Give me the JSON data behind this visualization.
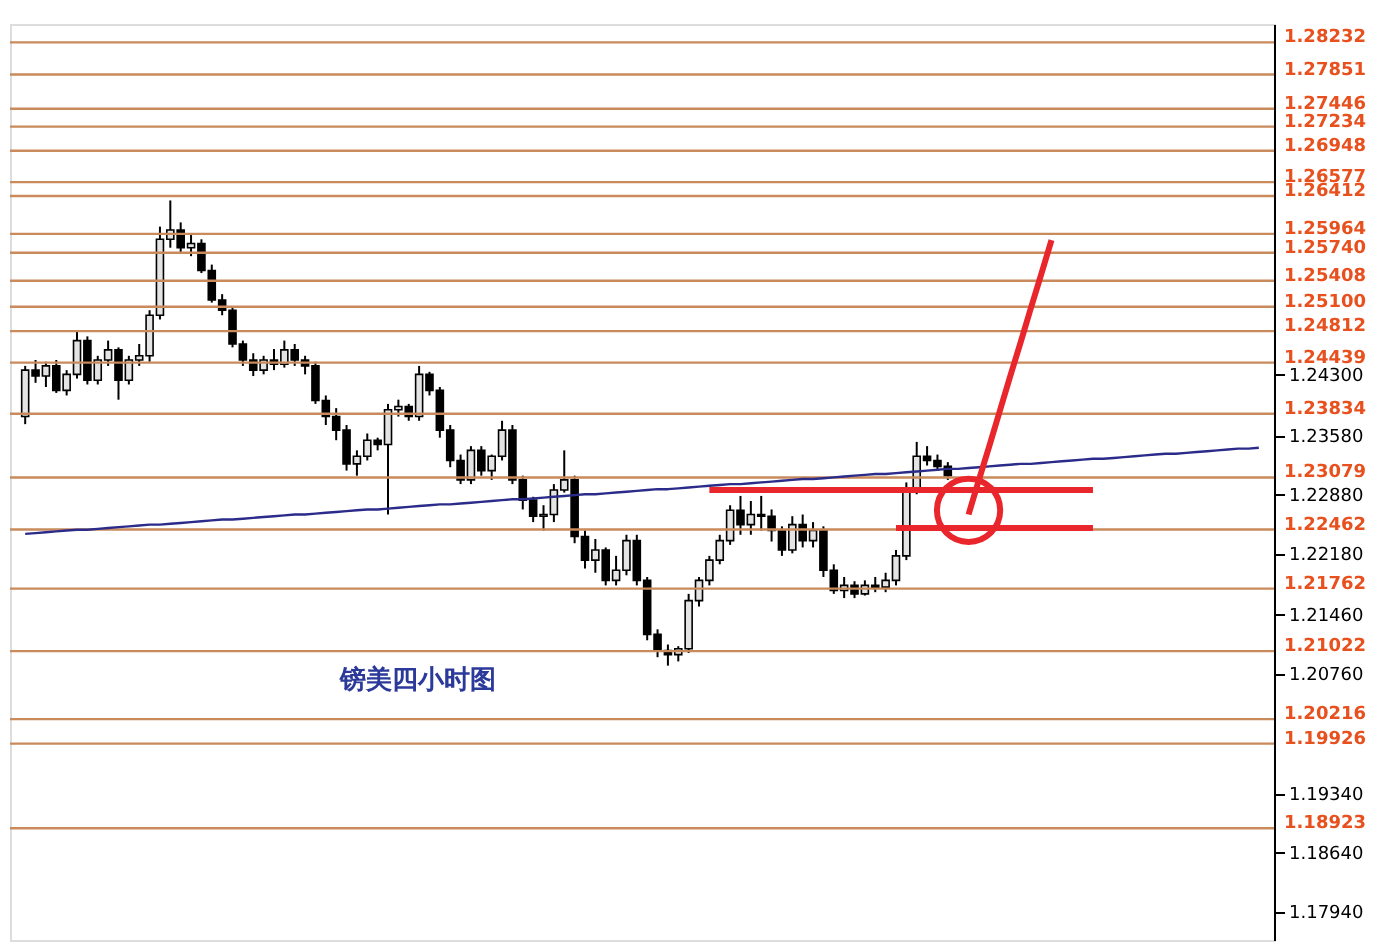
{
  "chart_data": {
    "type": "candlestick",
    "categories": [
      null,
      null,
      null,
      null,
      null,
      null,
      null,
      null,
      null,
      null,
      null,
      null,
      null,
      null,
      null,
      null,
      null,
      null,
      null,
      null,
      null,
      null,
      null,
      null,
      null,
      null,
      null,
      null,
      null,
      null,
      null,
      null,
      null,
      null,
      null,
      null,
      null,
      null,
      null,
      null,
      null,
      null,
      null,
      null,
      null,
      null,
      null,
      null,
      null,
      null,
      null,
      null,
      null,
      null,
      null,
      null,
      null,
      null,
      null,
      null,
      null,
      null,
      null,
      null,
      null,
      null,
      null,
      null,
      null,
      null,
      null,
      null,
      null,
      null,
      null,
      null,
      null,
      null,
      null,
      null,
      null,
      null,
      null,
      null,
      null,
      null,
      null,
      null,
      null,
      null,
      null,
      null,
      null,
      null,
      null,
      null,
      null,
      null,
      null,
      null,
      null,
      null,
      null,
      null,
      null,
      null,
      null,
      null,
      null,
      null,
      null,
      null,
      null,
      null,
      null,
      null,
      null,
      null,
      null,
      null
    ],
    "ohlc": [
      [
        1.238,
        1.244,
        1.2371,
        1.2435
      ],
      [
        1.2435,
        1.2447,
        1.242,
        1.2428
      ],
      [
        1.2428,
        1.2445,
        1.2415,
        1.244
      ],
      [
        1.244,
        1.2447,
        1.2408,
        1.2411
      ],
      [
        1.2411,
        1.2435,
        1.2405,
        1.243
      ],
      [
        1.243,
        1.2482,
        1.2425,
        1.247
      ],
      [
        1.247,
        1.2475,
        1.2418,
        1.2423
      ],
      [
        1.2423,
        1.2452,
        1.2418,
        1.2447
      ],
      [
        1.2447,
        1.247,
        1.244,
        1.2459
      ],
      [
        1.2459,
        1.2462,
        1.24,
        1.2423
      ],
      [
        1.2423,
        1.2452,
        1.2418,
        1.2447
      ],
      [
        1.2447,
        1.2466,
        1.244,
        1.2452
      ],
      [
        1.2452,
        1.2506,
        1.2445,
        1.25
      ],
      [
        1.25,
        1.2605,
        1.2495,
        1.259
      ],
      [
        1.259,
        1.2636,
        1.258,
        1.2601
      ],
      [
        1.2601,
        1.261,
        1.2575,
        1.258
      ],
      [
        1.258,
        1.2595,
        1.257,
        1.2585
      ],
      [
        1.2585,
        1.259,
        1.255,
        1.2553
      ],
      [
        1.2553,
        1.256,
        1.2515,
        1.2518
      ],
      [
        1.2518,
        1.2525,
        1.25,
        1.2506
      ],
      [
        1.2506,
        1.251,
        1.2462,
        1.2466
      ],
      [
        1.2466,
        1.247,
        1.244,
        1.2447
      ],
      [
        1.2447,
        1.2455,
        1.2428,
        1.2435
      ],
      [
        1.2435,
        1.2452,
        1.243,
        1.2447
      ],
      [
        1.2447,
        1.246,
        1.2435,
        1.2442
      ],
      [
        1.2442,
        1.247,
        1.2438,
        1.2459
      ],
      [
        1.2459,
        1.2466,
        1.244,
        1.2447
      ],
      [
        1.2447,
        1.2452,
        1.243,
        1.244
      ],
      [
        1.244,
        1.2445,
        1.2395,
        1.2399
      ],
      [
        1.2399,
        1.2405,
        1.237,
        1.238
      ],
      [
        1.238,
        1.239,
        1.2352,
        1.2364
      ],
      [
        1.2364,
        1.237,
        1.2316,
        1.2324
      ],
      [
        1.2324,
        1.234,
        1.231,
        1.2333
      ],
      [
        1.2333,
        1.236,
        1.2328,
        1.2352
      ],
      [
        1.2352,
        1.2355,
        1.234,
        1.2347
      ],
      [
        1.2347,
        1.2395,
        1.2264,
        1.2388
      ],
      [
        1.2388,
        1.24,
        1.238,
        1.2392
      ],
      [
        1.2392,
        1.2395,
        1.2375,
        1.238
      ],
      [
        1.238,
        1.244,
        1.2375,
        1.243
      ],
      [
        1.243,
        1.2433,
        1.2405,
        1.2411
      ],
      [
        1.2411,
        1.2415,
        1.2355,
        1.2364
      ],
      [
        1.2364,
        1.237,
        1.232,
        1.2328
      ],
      [
        1.2328,
        1.2335,
        1.23,
        1.2305
      ],
      [
        1.2305,
        1.2345,
        1.23,
        1.234
      ],
      [
        1.234,
        1.2345,
        1.231,
        1.2316
      ],
      [
        1.2316,
        1.2335,
        1.2305,
        1.2333
      ],
      [
        1.2333,
        1.2375,
        1.2328,
        1.2364
      ],
      [
        1.2364,
        1.237,
        1.23,
        1.2305
      ],
      [
        1.2305,
        1.231,
        1.227,
        1.2281
      ],
      [
        1.2281,
        1.2285,
        1.2255,
        1.2262
      ],
      [
        1.2262,
        1.2275,
        1.2245,
        1.2264
      ],
      [
        1.2264,
        1.23,
        1.2255,
        1.2293
      ],
      [
        1.2293,
        1.234,
        1.229,
        1.2305
      ],
      [
        1.2305,
        1.231,
        1.223,
        1.2238
      ],
      [
        1.2238,
        1.2245,
        1.22,
        1.221
      ],
      [
        1.221,
        1.2235,
        1.2195,
        1.2222
      ],
      [
        1.2222,
        1.2225,
        1.218,
        1.2186
      ],
      [
        1.2186,
        1.2215,
        1.218,
        1.2198
      ],
      [
        1.2198,
        1.224,
        1.2192,
        1.2233
      ],
      [
        1.2233,
        1.224,
        1.218,
        1.2186
      ],
      [
        1.2186,
        1.219,
        1.2115,
        1.2122
      ],
      [
        1.2122,
        1.2128,
        1.2095,
        1.2103
      ],
      [
        1.2103,
        1.211,
        1.2085,
        1.2098
      ],
      [
        1.2098,
        1.2108,
        1.209,
        1.2105
      ],
      [
        1.2105,
        1.217,
        1.21,
        1.2162
      ],
      [
        1.2162,
        1.219,
        1.2155,
        1.2186
      ],
      [
        1.2186,
        1.2215,
        1.218,
        1.221
      ],
      [
        1.221,
        1.224,
        1.2205,
        1.2233
      ],
      [
        1.2233,
        1.2275,
        1.2228,
        1.2269
      ],
      [
        1.2269,
        1.2286,
        1.224,
        1.2252
      ],
      [
        1.2252,
        1.228,
        1.224,
        1.2264
      ],
      [
        1.2264,
        1.2286,
        1.2245,
        1.2262
      ],
      [
        1.2262,
        1.227,
        1.2232,
        1.2245
      ],
      [
        1.2245,
        1.225,
        1.2215,
        1.2222
      ],
      [
        1.2222,
        1.2262,
        1.2218,
        1.2252
      ],
      [
        1.2252,
        1.2264,
        1.2225,
        1.2233
      ],
      [
        1.2233,
        1.2255,
        1.2225,
        1.2245
      ],
      [
        1.2245,
        1.225,
        1.219,
        1.2198
      ],
      [
        1.2198,
        1.2205,
        1.217,
        1.2174
      ],
      [
        1.2174,
        1.219,
        1.2165,
        1.218
      ],
      [
        1.218,
        1.2185,
        1.2165,
        1.217
      ],
      [
        1.217,
        1.2186,
        1.2168,
        1.218
      ],
      [
        1.218,
        1.219,
        1.2172,
        1.2178
      ],
      [
        1.2178,
        1.2195,
        1.2172,
        1.2186
      ],
      [
        1.2186,
        1.2222,
        1.218,
        1.2215
      ],
      [
        1.2215,
        1.2302,
        1.221,
        1.2293
      ],
      [
        1.2293,
        1.235,
        1.2288,
        1.2333
      ],
      [
        1.2333,
        1.2345,
        1.2322,
        1.2328
      ],
      [
        1.2328,
        1.2335,
        1.2316,
        1.2321
      ],
      [
        1.2321,
        1.2326,
        1.2305,
        1.231
      ],
      null,
      null,
      null,
      null,
      null,
      null,
      null,
      null,
      null,
      null,
      null,
      null,
      null,
      null,
      null,
      null,
      null,
      null,
      null,
      null,
      null,
      null,
      null,
      null,
      null,
      null,
      null,
      null,
      null,
      null
    ],
    "ylim": [
      1.176,
      1.2845
    ],
    "yticks": [
      {
        "value": 1.243,
        "label": "1.24300"
      },
      {
        "value": 1.2358,
        "label": "1.23580"
      },
      {
        "value": 1.2288,
        "label": "1.22880"
      },
      {
        "value": 1.2218,
        "label": "1.22180"
      },
      {
        "value": 1.2146,
        "label": "1.21460"
      },
      {
        "value": 1.2076,
        "label": "1.20760"
      },
      {
        "value": 1.1934,
        "label": "1.19340"
      },
      {
        "value": 1.1864,
        "label": "1.18640"
      },
      {
        "value": 1.1794,
        "label": "1.17940"
      }
    ],
    "tick_labels": "y",
    "grid": false,
    "ref_lines": [
      {
        "axis": "y",
        "value": 1.28232,
        "label": "1.28232",
        "color": "#c98a5c"
      },
      {
        "axis": "y",
        "value": 1.27851,
        "label": "1.27851",
        "color": "#c98a5c"
      },
      {
        "axis": "y",
        "value": 1.27446,
        "label": "1.27446",
        "color": "#c98a5c"
      },
      {
        "axis": "y",
        "value": 1.27234,
        "label": "1.27234",
        "color": "#c98a5c"
      },
      {
        "axis": "y",
        "value": 1.26948,
        "label": "1.26948",
        "color": "#c98a5c"
      },
      {
        "axis": "y",
        "value": 1.26577,
        "label": "1.26577",
        "color": "#c98a5c"
      },
      {
        "axis": "y",
        "value": 1.26412,
        "label": "1.26412",
        "color": "#c98a5c"
      },
      {
        "axis": "y",
        "value": 1.25964,
        "label": "1.25964",
        "color": "#c98a5c"
      },
      {
        "axis": "y",
        "value": 1.2574,
        "label": "1.25740",
        "color": "#c98a5c"
      },
      {
        "axis": "y",
        "value": 1.25408,
        "label": "1.25408",
        "color": "#c98a5c"
      },
      {
        "axis": "y",
        "value": 1.251,
        "label": "1.25100",
        "color": "#c98a5c"
      },
      {
        "axis": "y",
        "value": 1.24812,
        "label": "1.24812",
        "color": "#c98a5c"
      },
      {
        "axis": "y",
        "value": 1.24439,
        "label": "1.24439",
        "color": "#c98a5c"
      },
      {
        "axis": "y",
        "value": 1.23834,
        "label": "1.23834",
        "color": "#c98a5c"
      },
      {
        "axis": "y",
        "value": 1.23079,
        "label": "1.23079",
        "color": "#c98a5c"
      },
      {
        "axis": "y",
        "value": 1.22462,
        "label": "1.22462",
        "color": "#c98a5c"
      },
      {
        "axis": "y",
        "value": 1.21762,
        "label": "1.21762",
        "color": "#c98a5c"
      },
      {
        "axis": "y",
        "value": 1.21022,
        "label": "1.21022",
        "color": "#c98a5c"
      },
      {
        "axis": "y",
        "value": 1.20216,
        "label": "1.20216",
        "color": "#c98a5c"
      },
      {
        "axis": "y",
        "value": 1.19926,
        "label": "1.19926",
        "color": "#c98a5c"
      },
      {
        "axis": "y",
        "value": 1.18923,
        "label": "1.18923",
        "color": "#c98a5c"
      }
    ],
    "series": [
      {
        "type": "line",
        "color": "#2b2b8a",
        "values": [
          1.2241,
          1.2242,
          1.2243,
          1.2244,
          1.2245,
          1.2246,
          1.2246,
          1.2247,
          1.2248,
          1.2249,
          1.225,
          1.2251,
          1.2252,
          1.2252,
          1.2253,
          1.2254,
          1.2255,
          1.2256,
          1.2257,
          1.2258,
          1.2258,
          1.2259,
          1.226,
          1.2261,
          1.2262,
          1.2263,
          1.2264,
          1.2264,
          1.2265,
          1.2266,
          1.2267,
          1.2268,
          1.2269,
          1.227,
          1.227,
          1.2271,
          1.2272,
          1.2273,
          1.2274,
          1.2275,
          1.2276,
          1.2276,
          1.2277,
          1.2278,
          1.2279,
          1.228,
          1.2281,
          1.2282,
          1.2282,
          1.2283,
          1.2284,
          1.2285,
          1.2286,
          1.2287,
          1.2288,
          1.2288,
          1.2289,
          1.229,
          1.2291,
          1.2292,
          1.2293,
          1.2294,
          1.2294,
          1.2295,
          1.2296,
          1.2297,
          1.2298,
          1.2299,
          1.23,
          1.23,
          1.2301,
          1.2302,
          1.2303,
          1.2304,
          1.2305,
          1.2306,
          1.2306,
          1.2307,
          1.2308,
          1.2309,
          1.231,
          1.2311,
          1.2312,
          1.2312,
          1.2313,
          1.2314,
          1.2315,
          1.2316,
          1.2317,
          1.2318,
          1.2318,
          1.2319,
          1.232,
          1.2321,
          1.2322,
          1.2323,
          1.2324,
          1.2324,
          1.2325,
          1.2326,
          1.2327,
          1.2328,
          1.2329,
          1.233,
          1.233,
          1.2331,
          1.2332,
          1.2333,
          1.2334,
          1.2335,
          1.2336,
          1.2336,
          1.2337,
          1.2338,
          1.2339,
          1.234,
          1.2341,
          1.2342,
          1.2342,
          1.2343
        ]
      },
      {
        "type": "line",
        "color": "#e8262b",
        "values": [
          null,
          null,
          null,
          null,
          null,
          null,
          null,
          null,
          null,
          null,
          null,
          null,
          null,
          null,
          null,
          null,
          null,
          null,
          null,
          null,
          null,
          null,
          null,
          null,
          null,
          null,
          null,
          null,
          null,
          null,
          null,
          null,
          null,
          null,
          null,
          null,
          null,
          null,
          null,
          null,
          null,
          null,
          null,
          null,
          null,
          null,
          null,
          null,
          null,
          null,
          null,
          null,
          null,
          null,
          null,
          null,
          null,
          null,
          null,
          null,
          null,
          null,
          null,
          null,
          null,
          null,
          1.2293,
          1.2293,
          1.2293,
          1.2293,
          1.2293,
          1.2293,
          1.2293,
          1.2293,
          1.2293,
          1.2293,
          1.2293,
          1.2293,
          1.2293,
          1.2293,
          1.2293,
          1.2293,
          1.2293,
          1.2293,
          1.2293,
          1.2293,
          1.2293,
          1.2293,
          1.2293,
          1.2293,
          1.2293,
          1.2293,
          1.2293,
          1.2293,
          1.2293,
          1.2293,
          1.2293,
          1.2293,
          1.2293,
          1.2293,
          1.2293,
          1.2293,
          1.2293,
          1.2293,
          null,
          null,
          null,
          null,
          null,
          null,
          null,
          null,
          null,
          null,
          null,
          null,
          null,
          null,
          null,
          null
        ]
      },
      {
        "type": "line",
        "color": "#e8262b",
        "values": [
          null,
          null,
          null,
          null,
          null,
          null,
          null,
          null,
          null,
          null,
          null,
          null,
          null,
          null,
          null,
          null,
          null,
          null,
          null,
          null,
          null,
          null,
          null,
          null,
          null,
          null,
          null,
          null,
          null,
          null,
          null,
          null,
          null,
          null,
          null,
          null,
          null,
          null,
          null,
          null,
          null,
          null,
          null,
          null,
          null,
          null,
          null,
          null,
          null,
          null,
          null,
          null,
          null,
          null,
          null,
          null,
          null,
          null,
          null,
          null,
          null,
          null,
          null,
          null,
          null,
          null,
          null,
          null,
          null,
          null,
          null,
          null,
          null,
          null,
          null,
          null,
          null,
          null,
          null,
          null,
          null,
          null,
          null,
          null,
          1.2248,
          1.2248,
          1.2248,
          1.2248,
          1.2248,
          1.2248,
          1.2248,
          1.2248,
          1.2248,
          1.2248,
          1.2248,
          1.2248,
          1.2248,
          1.2248,
          1.2248,
          1.2248,
          1.2248,
          1.2248,
          1.2248,
          1.2248,
          null,
          null,
          null,
          null,
          null,
          null,
          null,
          null,
          null,
          null,
          null,
          null,
          null,
          null,
          null,
          null
        ]
      },
      {
        "type": "line",
        "color": "#e8262b",
        "values": [
          null,
          null,
          null,
          null,
          null,
          null,
          null,
          null,
          null,
          null,
          null,
          null,
          null,
          null,
          null,
          null,
          null,
          null,
          null,
          null,
          null,
          null,
          null,
          null,
          null,
          null,
          null,
          null,
          null,
          null,
          null,
          null,
          null,
          null,
          null,
          null,
          null,
          null,
          null,
          null,
          null,
          null,
          null,
          null,
          null,
          null,
          null,
          null,
          null,
          null,
          null,
          null,
          null,
          null,
          null,
          null,
          null,
          null,
          null,
          null,
          null,
          null,
          null,
          null,
          null,
          null,
          null,
          null,
          null,
          null,
          null,
          null,
          null,
          null,
          null,
          null,
          null,
          null,
          null,
          null,
          null,
          null,
          null,
          null,
          null,
          null,
          null,
          null,
          null,
          null,
          null,
          1.2264,
          1.2305,
          1.2345,
          1.2386,
          1.2427,
          1.2467,
          1.2508,
          1.2548,
          1.2589,
          null,
          null,
          null,
          null,
          null,
          null,
          null,
          null,
          null,
          null,
          null,
          null,
          null,
          null,
          null,
          null,
          null,
          null,
          null,
          null
        ]
      },
      {
        "type": "scatter",
        "color": "#e8262b",
        "marker": "circle",
        "values": [
          null,
          null,
          null,
          null,
          null,
          null,
          null,
          null,
          null,
          null,
          null,
          null,
          null,
          null,
          null,
          null,
          null,
          null,
          null,
          null,
          null,
          null,
          null,
          null,
          null,
          null,
          null,
          null,
          null,
          null,
          null,
          null,
          null,
          null,
          null,
          null,
          null,
          null,
          null,
          null,
          null,
          null,
          null,
          null,
          null,
          null,
          null,
          null,
          null,
          null,
          null,
          null,
          null,
          null,
          null,
          null,
          null,
          null,
          null,
          null,
          null,
          null,
          null,
          null,
          null,
          null,
          null,
          null,
          null,
          null,
          null,
          null,
          null,
          null,
          null,
          null,
          null,
          null,
          null,
          null,
          null,
          null,
          null,
          null,
          null,
          null,
          null,
          null,
          null,
          null,
          null,
          1.2269,
          null,
          null,
          null,
          null,
          null,
          null,
          null,
          null,
          null,
          null,
          null,
          null,
          null,
          null,
          null,
          null,
          null,
          null,
          null,
          null,
          null,
          null,
          null,
          null,
          null,
          null,
          null,
          null
        ]
      }
    ],
    "annotations": [
      "镑美四小时图"
    ]
  }
}
